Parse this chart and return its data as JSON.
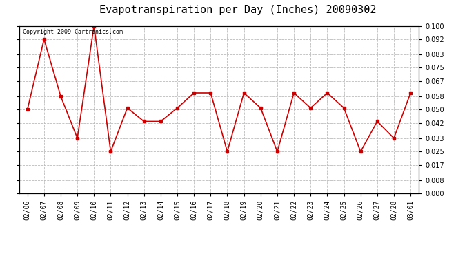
{
  "title": "Evapotranspiration per Day (Inches) 20090302",
  "copyright_text": "Copyright 2009 Cartronics.com",
  "x_labels": [
    "02/06",
    "02/07",
    "02/08",
    "02/09",
    "02/10",
    "02/11",
    "02/12",
    "02/13",
    "02/14",
    "02/15",
    "02/16",
    "02/17",
    "02/18",
    "02/19",
    "02/20",
    "02/21",
    "02/22",
    "02/23",
    "02/24",
    "02/25",
    "02/26",
    "02/27",
    "02/28",
    "03/01"
  ],
  "y_values": [
    0.05,
    0.092,
    0.058,
    0.033,
    0.1,
    0.025,
    0.051,
    0.043,
    0.043,
    0.051,
    0.06,
    0.06,
    0.025,
    0.06,
    0.051,
    0.025,
    0.06,
    0.051,
    0.06,
    0.051,
    0.025,
    0.043,
    0.033,
    0.06
  ],
  "line_color": "#cc0000",
  "marker": "s",
  "marker_size": 3,
  "ylim": [
    0.0,
    0.1
  ],
  "yticks": [
    0.0,
    0.008,
    0.017,
    0.025,
    0.033,
    0.042,
    0.05,
    0.058,
    0.067,
    0.075,
    0.083,
    0.092,
    0.1
  ],
  "background_color": "#ffffff",
  "grid_color": "#bbbbbb",
  "title_fontsize": 11,
  "copyright_fontsize": 6,
  "tick_fontsize": 7,
  "figwidth": 6.9,
  "figheight": 3.75,
  "dpi": 100
}
